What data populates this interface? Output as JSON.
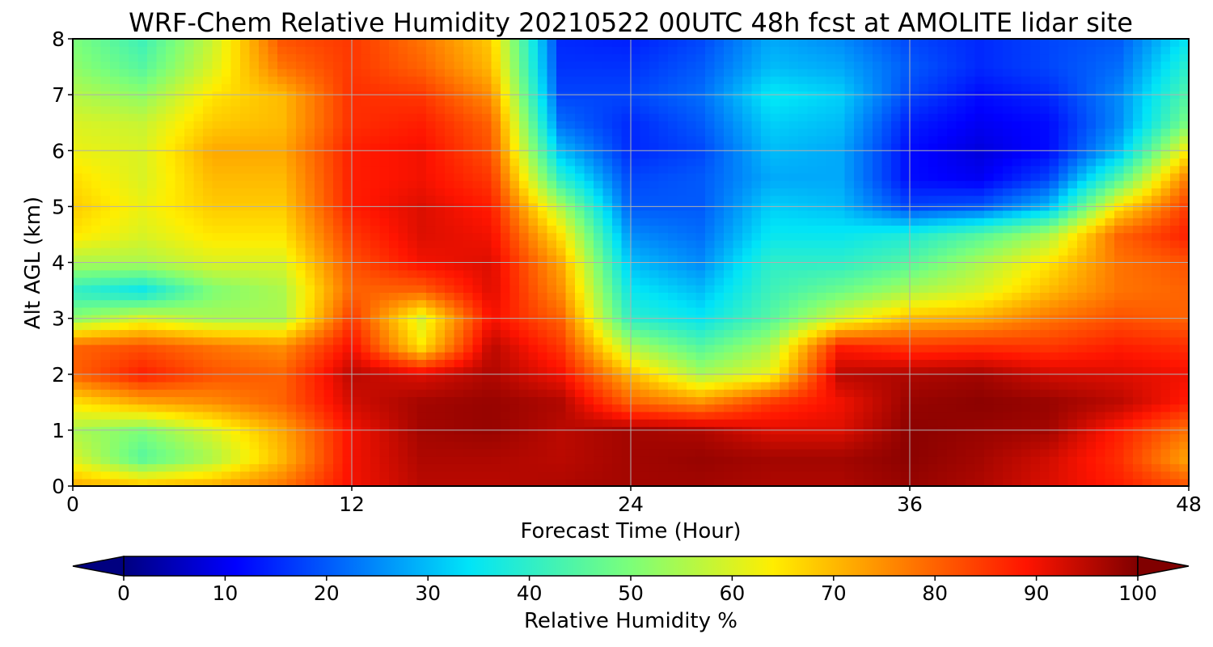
{
  "chart_data": {
    "type": "heatmap",
    "title": "WRF-Chem Relative Humidity 20210522 00UTC 48h fcst at AMOLITE lidar site",
    "xlabel": "Forecast Time (Hour)",
    "ylabel": "Alt AGL (km)",
    "xlim": [
      0,
      48
    ],
    "ylim": [
      0,
      8
    ],
    "xticks": [
      0,
      12,
      24,
      36,
      48
    ],
    "yticks": [
      0,
      1,
      2,
      3,
      4,
      5,
      6,
      7,
      8
    ],
    "grid": true,
    "x": [
      0,
      3,
      6,
      9,
      12,
      15,
      18,
      21,
      24,
      27,
      30,
      33,
      36,
      39,
      42,
      45,
      48
    ],
    "y": [
      0,
      0.5,
      1,
      1.5,
      2,
      2.5,
      3,
      3.5,
      4,
      4.5,
      5,
      5.5,
      6,
      6.5,
      7,
      7.5,
      8
    ],
    "z": [
      [
        72,
        70,
        72,
        78,
        90,
        95,
        95,
        96,
        97,
        97,
        96,
        96,
        98,
        96,
        92,
        88,
        82
      ],
      [
        60,
        45,
        55,
        70,
        90,
        96,
        96,
        95,
        97,
        98,
        97,
        97,
        99,
        97,
        93,
        86,
        72
      ],
      [
        55,
        50,
        60,
        72,
        90,
        97,
        98,
        95,
        97,
        96,
        92,
        92,
        99,
        98,
        97,
        88,
        78
      ],
      [
        65,
        72,
        75,
        80,
        93,
        97,
        98,
        96,
        80,
        75,
        85,
        90,
        98,
        99,
        98,
        95,
        88
      ],
      [
        80,
        88,
        82,
        80,
        95,
        92,
        96,
        90,
        70,
        55,
        62,
        95,
        96,
        97,
        93,
        92,
        90
      ],
      [
        80,
        82,
        78,
        75,
        90,
        65,
        95,
        85,
        55,
        45,
        55,
        88,
        85,
        86,
        85,
        88,
        86
      ],
      [
        52,
        60,
        55,
        55,
        85,
        60,
        90,
        80,
        40,
        35,
        45,
        60,
        70,
        72,
        78,
        82,
        80
      ],
      [
        40,
        35,
        50,
        55,
        80,
        80,
        92,
        75,
        35,
        30,
        42,
        48,
        55,
        60,
        70,
        78,
        80
      ],
      [
        55,
        55,
        60,
        60,
        82,
        90,
        92,
        72,
        30,
        25,
        40,
        40,
        45,
        55,
        65,
        78,
        82
      ],
      [
        65,
        60,
        65,
        65,
        85,
        92,
        90,
        65,
        25,
        22,
        35,
        35,
        38,
        45,
        55,
        80,
        88
      ],
      [
        68,
        62,
        68,
        68,
        88,
        92,
        88,
        55,
        20,
        20,
        32,
        30,
        18,
        20,
        30,
        65,
        85
      ],
      [
        66,
        60,
        70,
        70,
        88,
        90,
        85,
        40,
        18,
        20,
        28,
        28,
        12,
        10,
        18,
        45,
        78
      ],
      [
        62,
        60,
        72,
        72,
        88,
        90,
        82,
        30,
        15,
        18,
        30,
        28,
        12,
        8,
        12,
        30,
        65
      ],
      [
        60,
        58,
        68,
        70,
        86,
        88,
        80,
        22,
        15,
        20,
        32,
        30,
        14,
        10,
        12,
        25,
        50
      ],
      [
        56,
        52,
        65,
        70,
        86,
        85,
        75,
        18,
        18,
        22,
        35,
        32,
        18,
        12,
        15,
        25,
        45
      ],
      [
        52,
        45,
        60,
        78,
        85,
        80,
        70,
        16,
        16,
        20,
        30,
        28,
        20,
        15,
        18,
        22,
        40
      ],
      [
        50,
        42,
        58,
        82,
        85,
        78,
        68,
        15,
        14,
        18,
        28,
        25,
        18,
        15,
        18,
        20,
        35
      ]
    ],
    "colorbar": {
      "label": "Relative Humidity %",
      "min": 0,
      "max": 100,
      "ticks": [
        0,
        10,
        20,
        30,
        40,
        50,
        60,
        70,
        80,
        90,
        100
      ],
      "colormap": "jet",
      "extend": "both"
    }
  }
}
